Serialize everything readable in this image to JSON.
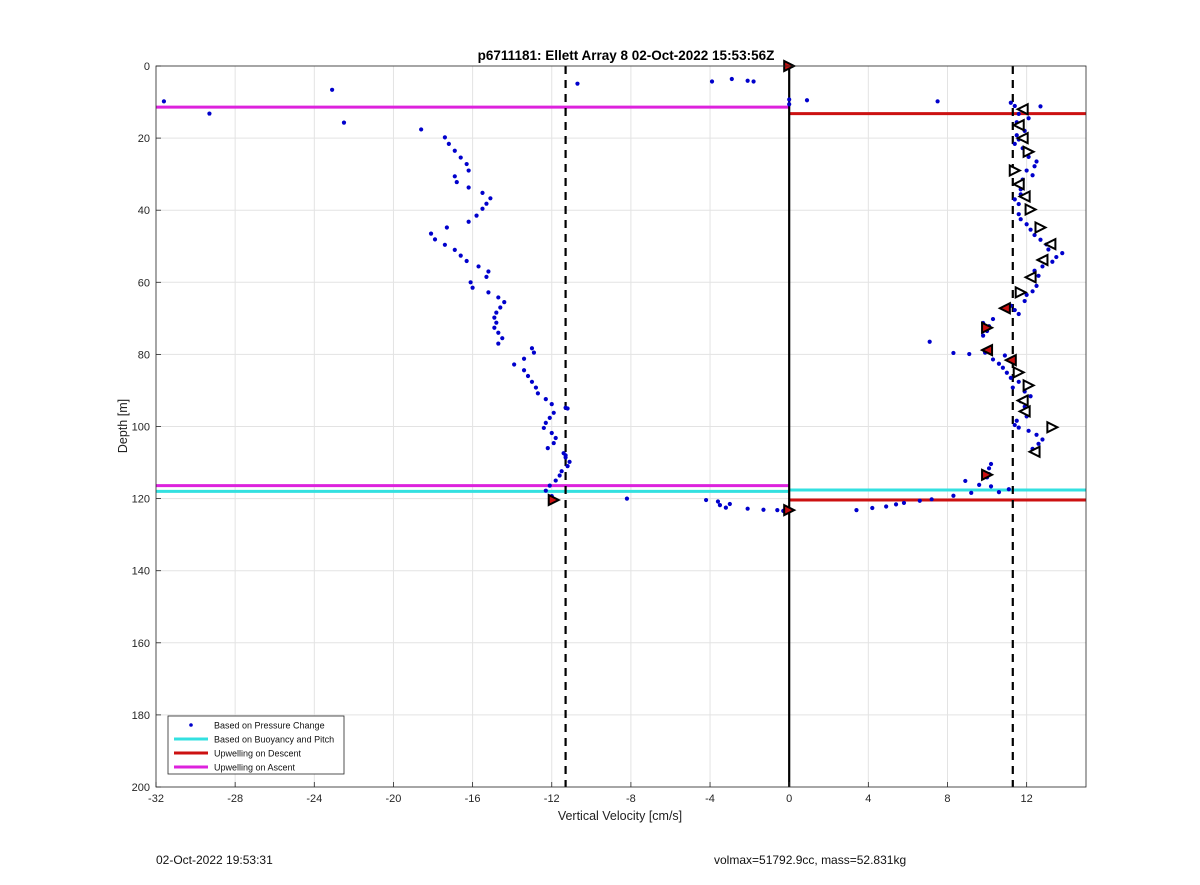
{
  "chart_data": {
    "type": "scatter",
    "title": "p6711181: Ellett Array 8 02-Oct-2022 15:53:56Z",
    "xlabel": "Vertical Velocity [cm/s]",
    "ylabel": "Depth [m]",
    "xlim": [
      -32,
      15
    ],
    "ylim": [
      0,
      200
    ],
    "y_reversed": true,
    "grid": true,
    "xticks": [
      -32,
      -28,
      -24,
      -20,
      -16,
      -12,
      -8,
      -4,
      0,
      4,
      8,
      12
    ],
    "yticks": [
      0,
      20,
      40,
      60,
      80,
      100,
      120,
      140,
      160,
      180,
      200
    ],
    "legend_location": "bottom-left",
    "legend": [
      {
        "label": "Based on Pressure Change",
        "color": "#0000cc",
        "marker": "dot"
      },
      {
        "label": "Based on Buoyancy and Pitch",
        "color": "#33e0e0",
        "marker": "line"
      },
      {
        "label": "Upwelling on Descent",
        "color": "#cc1111",
        "marker": "line"
      },
      {
        "label": "Upwelling on Ascent",
        "color": "#dd22dd",
        "marker": "line"
      }
    ],
    "series": [
      {
        "name": "Based on Pressure Change",
        "kind": "points",
        "color": "#0000cc",
        "points": [
          [
            -31.6,
            9.8
          ],
          [
            -29.3,
            13.2
          ],
          [
            -23.1,
            6.6
          ],
          [
            -22.5,
            15.7
          ],
          [
            -18.6,
            17.6
          ],
          [
            -17.4,
            19.8
          ],
          [
            -17.2,
            21.6
          ],
          [
            -16.9,
            23.5
          ],
          [
            -16.6,
            25.4
          ],
          [
            -16.3,
            27.2
          ],
          [
            -16.2,
            29
          ],
          [
            -16.9,
            30.6
          ],
          [
            -16.8,
            32.2
          ],
          [
            -16.2,
            33.7
          ],
          [
            -15.5,
            35.2
          ],
          [
            -15.1,
            36.7
          ],
          [
            -15.3,
            38.2
          ],
          [
            -15.5,
            39.6
          ],
          [
            -15.8,
            41.5
          ],
          [
            -16.2,
            43.2
          ],
          [
            -17.3,
            44.8
          ],
          [
            -18.1,
            46.5
          ],
          [
            -17.9,
            48.1
          ],
          [
            -17.4,
            49.6
          ],
          [
            -16.9,
            51
          ],
          [
            -16.6,
            52.6
          ],
          [
            -16.3,
            54.1
          ],
          [
            -15.7,
            55.6
          ],
          [
            -15.2,
            57
          ],
          [
            -15.3,
            58.5
          ],
          [
            -16.1,
            60
          ],
          [
            -16.0,
            61.5
          ],
          [
            -15.2,
            62.8
          ],
          [
            -14.7,
            64.2
          ],
          [
            -14.4,
            65.5
          ],
          [
            -14.6,
            67
          ],
          [
            -14.8,
            68.4
          ],
          [
            -14.9,
            69.8
          ],
          [
            -14.8,
            71.2
          ],
          [
            -14.9,
            72.6
          ],
          [
            -14.7,
            74
          ],
          [
            -14.5,
            75.5
          ],
          [
            -14.7,
            77
          ],
          [
            -13.0,
            78.3
          ],
          [
            -12.9,
            79.5
          ],
          [
            -13.4,
            81.2
          ],
          [
            -13.9,
            82.8
          ],
          [
            -13.4,
            84.4
          ],
          [
            -13.2,
            86
          ],
          [
            -13.0,
            87.6
          ],
          [
            -12.8,
            89.2
          ],
          [
            -12.7,
            90.8
          ],
          [
            -12.3,
            92.4
          ],
          [
            -12.0,
            93.8
          ],
          [
            -11.3,
            94.8
          ],
          [
            -11.9,
            96.2
          ],
          [
            -12.1,
            97.6
          ],
          [
            -12.3,
            99
          ],
          [
            -12.4,
            100.4
          ],
          [
            -12.0,
            101.8
          ],
          [
            -11.8,
            103.2
          ],
          [
            -11.9,
            104.6
          ],
          [
            -12.2,
            106
          ],
          [
            -11.4,
            107.4
          ],
          [
            -11.3,
            108.6
          ],
          [
            -11.1,
            109.8
          ],
          [
            -11.2,
            111
          ],
          [
            -11.5,
            112.4
          ],
          [
            -11.6,
            113.6
          ],
          [
            -11.8,
            115
          ],
          [
            -12.1,
            116.4
          ],
          [
            -12.3,
            117.8
          ],
          [
            -12.0,
            119.3
          ],
          [
            -12.0,
            120.3
          ],
          [
            -8.2,
            120
          ],
          [
            -4.2,
            120.4
          ],
          [
            -3.6,
            120.8
          ],
          [
            -3.0,
            121.5
          ],
          [
            -3.5,
            121.8
          ],
          [
            -3.2,
            122.5
          ],
          [
            -2.1,
            122.8
          ],
          [
            -1.3,
            123.1
          ],
          [
            -0.6,
            123.2
          ],
          [
            -0.3,
            123.4
          ],
          [
            3.4,
            123.2
          ],
          [
            4.2,
            122.6
          ],
          [
            4.9,
            122.2
          ],
          [
            5.4,
            121.6
          ],
          [
            5.8,
            121.2
          ],
          [
            6.6,
            120.6
          ],
          [
            7.2,
            120.2
          ],
          [
            8.3,
            119.2
          ],
          [
            9.2,
            118.4
          ],
          [
            10.6,
            118.2
          ],
          [
            11.1,
            117.4
          ],
          [
            10.2,
            116.6
          ],
          [
            9.6,
            116.2
          ],
          [
            8.9,
            115.1
          ],
          [
            10.0,
            114.1
          ],
          [
            10.1,
            113.2
          ],
          [
            10.1,
            111.6
          ],
          [
            10.2,
            110.4
          ],
          [
            12.3,
            106.2
          ],
          [
            12.6,
            104.8
          ],
          [
            12.8,
            103.6
          ],
          [
            12.5,
            102.3
          ],
          [
            12.1,
            101.2
          ],
          [
            11.6,
            100.3
          ],
          [
            11.4,
            99.6
          ],
          [
            11.5,
            98.4
          ],
          [
            12.0,
            97.2
          ],
          [
            12.0,
            95.6
          ],
          [
            11.9,
            94.5
          ],
          [
            11.7,
            93
          ],
          [
            12.2,
            91.6
          ],
          [
            11.9,
            90.3
          ],
          [
            11.3,
            89.2
          ],
          [
            11.6,
            87.6
          ],
          [
            11.2,
            86.5
          ],
          [
            11.0,
            85.1
          ],
          [
            10.8,
            83.7
          ],
          [
            10.6,
            82.6
          ],
          [
            10.3,
            81.4
          ],
          [
            10.9,
            80.3
          ],
          [
            9.9,
            79.5
          ],
          [
            9.1,
            79.9
          ],
          [
            8.3,
            79.6
          ],
          [
            7.1,
            76.5
          ],
          [
            9.8,
            74.8
          ],
          [
            10.0,
            73.5
          ],
          [
            10.1,
            72.2
          ],
          [
            9.8,
            71.3
          ],
          [
            10.3,
            70.2
          ],
          [
            11.6,
            68.8
          ],
          [
            11.4,
            67.7
          ],
          [
            11.2,
            66.5
          ],
          [
            11.9,
            65.2
          ],
          [
            12.0,
            63.5
          ],
          [
            12.3,
            62.5
          ],
          [
            12.5,
            61
          ],
          [
            12.4,
            59.5
          ],
          [
            12.6,
            58.2
          ],
          [
            12.4,
            56.8
          ],
          [
            12.8,
            55.6
          ],
          [
            13.3,
            54.3
          ],
          [
            13.5,
            53
          ],
          [
            13.8,
            51.9
          ],
          [
            13.1,
            50.9
          ],
          [
            13.0,
            49.5
          ],
          [
            12.7,
            48.2
          ],
          [
            12.4,
            46.9
          ],
          [
            12.2,
            45.4
          ],
          [
            12.0,
            43.9
          ],
          [
            11.7,
            42.5
          ],
          [
            11.6,
            41.1
          ],
          [
            12.0,
            39.7
          ],
          [
            11.6,
            38.3
          ],
          [
            11.4,
            37
          ],
          [
            11.7,
            35.6
          ],
          [
            11.7,
            34.2
          ],
          [
            11.5,
            32.8
          ],
          [
            11.8,
            31.5
          ],
          [
            12.3,
            30.3
          ],
          [
            12.0,
            29
          ],
          [
            12.4,
            27.8
          ],
          [
            12.5,
            26.5
          ],
          [
            12.1,
            25.2
          ],
          [
            11.9,
            24
          ],
          [
            11.8,
            22.8
          ],
          [
            11.4,
            21.6
          ],
          [
            11.6,
            20.4
          ],
          [
            11.5,
            19.2
          ],
          [
            11.9,
            18
          ],
          [
            11.6,
            16.8
          ],
          [
            11.5,
            15.6
          ],
          [
            12.1,
            14.5
          ],
          [
            11.6,
            13.3
          ],
          [
            11.7,
            12.1
          ],
          [
            11.4,
            11.1
          ],
          [
            12.7,
            11.2
          ],
          [
            11.2,
            10.2
          ],
          [
            7.5,
            9.8
          ],
          [
            0.9,
            9.5
          ],
          [
            0.0,
            10.6
          ],
          [
            0.0,
            9.3
          ],
          [
            -1.8,
            4.3
          ],
          [
            -2.1,
            4.1
          ],
          [
            -2.9,
            3.6
          ],
          [
            -3.9,
            4.3
          ],
          [
            -10.7,
            4.9
          ],
          [
            -11.2,
            95
          ],
          [
            -11.3,
            108
          ]
        ]
      },
      {
        "name": "Based on Buoyancy and Pitch",
        "kind": "hlines",
        "color": "#33e0e0",
        "lines": [
          {
            "y": 117.6,
            "x1": 0,
            "x2": 15
          },
          {
            "y": 118.0,
            "x1": -32,
            "x2": 0
          }
        ]
      },
      {
        "name": "Upwelling on Descent",
        "kind": "hlines",
        "color": "#cc1111",
        "lines": [
          {
            "y": 13.2,
            "x1": 0,
            "x2": 15
          },
          {
            "y": 120.4,
            "x1": 0,
            "x2": 15
          }
        ]
      },
      {
        "name": "Upwelling on Ascent",
        "kind": "hlines",
        "color": "#dd22dd",
        "lines": [
          {
            "y": 11.4,
            "x1": -32,
            "x2": 0
          },
          {
            "y": 116.4,
            "x1": -32,
            "x2": 0
          }
        ]
      },
      {
        "name": "Triangle markers (open)",
        "kind": "triangles",
        "fill": "#ffffff",
        "stroke": "#000000",
        "points": [
          [
            11.8,
            12,
            "L"
          ],
          [
            11.6,
            16.4,
            "L"
          ],
          [
            11.8,
            20,
            "L"
          ],
          [
            12.1,
            23.8,
            "R"
          ],
          [
            11.4,
            29,
            "R"
          ],
          [
            11.6,
            32.8,
            "L"
          ],
          [
            11.9,
            36.2,
            "L"
          ],
          [
            12.2,
            39.8,
            "R"
          ],
          [
            12.7,
            44.8,
            "R"
          ],
          [
            13.2,
            49.4,
            "L"
          ],
          [
            12.8,
            53.8,
            "L"
          ],
          [
            12.2,
            58.6,
            "L"
          ],
          [
            11.7,
            62.8,
            "R"
          ],
          [
            11.6,
            85,
            "R"
          ],
          [
            12.1,
            88.6,
            "R"
          ],
          [
            11.8,
            92.8,
            "L"
          ],
          [
            11.9,
            95.8,
            "L"
          ],
          [
            13.3,
            100.2,
            "R"
          ],
          [
            12.4,
            107,
            "L"
          ]
        ]
      },
      {
        "name": "Triangle markers (red)",
        "kind": "triangles",
        "fill": "#cc1111",
        "stroke": "#000000",
        "points": [
          [
            0.0,
            0.0,
            "R"
          ],
          [
            10.9,
            67.2,
            "L"
          ],
          [
            10.0,
            72.6,
            "R"
          ],
          [
            10.0,
            78.8,
            "L"
          ],
          [
            11.2,
            81.6,
            "L"
          ],
          [
            10.0,
            113.4,
            "R"
          ],
          [
            -11.9,
            120.4,
            "R"
          ],
          [
            0.0,
            123.2,
            "R"
          ]
        ]
      }
    ],
    "vertical_lines": [
      {
        "x": 0,
        "style": "solid",
        "color": "#000000"
      },
      {
        "x": -11.3,
        "style": "dashed",
        "color": "#000000"
      },
      {
        "x": 11.3,
        "style": "dashed",
        "color": "#000000"
      }
    ]
  },
  "footer": {
    "left": "02-Oct-2022 19:53:31",
    "right": "volmax=51792.9cc, mass=52.831kg"
  }
}
